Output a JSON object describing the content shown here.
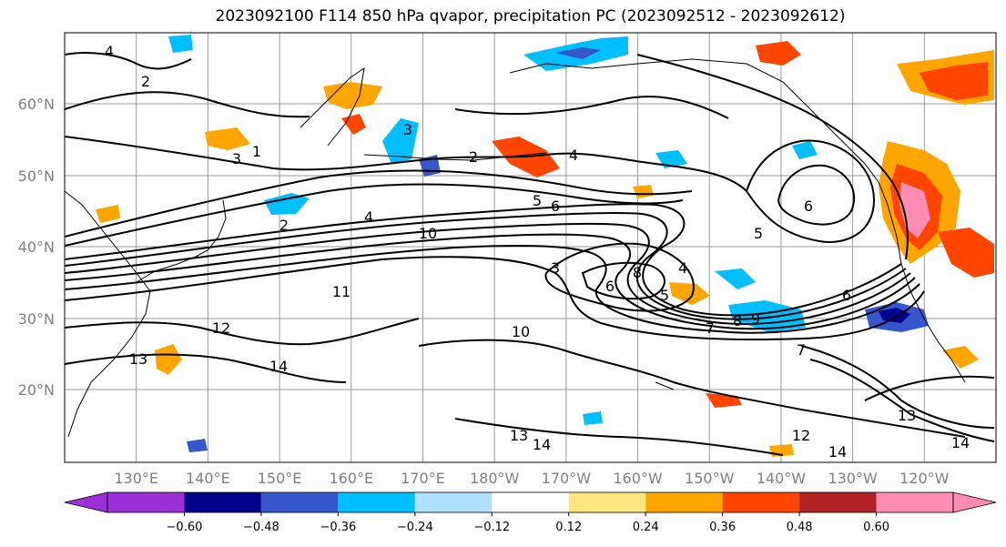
{
  "title": "2023092100 F114 850 hPa qvapor, precipitation PC (2023092512 - 2023092612)",
  "map": {
    "lat_labels": [
      "60°N",
      "50°N",
      "40°N",
      "30°N",
      "20°N"
    ],
    "lon_labels": [
      "130°E",
      "140°E",
      "150°E",
      "160°E",
      "170°E",
      "180°W",
      "170°W",
      "160°W",
      "150°W",
      "140°W",
      "130°W",
      "120°W"
    ],
    "extent": {
      "lon_min": 120,
      "lon_max": 250,
      "lat_min": 10,
      "lat_max": 70
    },
    "gridlines": true,
    "contour_labels": [
      "4",
      "2",
      "3",
      "1",
      "2",
      "4",
      "3",
      "2",
      "4",
      "5",
      "6",
      "10",
      "6",
      "5",
      "11",
      "12",
      "13",
      "14",
      "10",
      "9",
      "8",
      "7",
      "6",
      "5",
      "4",
      "3",
      "6",
      "7",
      "8",
      "13",
      "14",
      "12",
      "13",
      "14",
      "14"
    ]
  },
  "colorbar": {
    "colors": [
      "#9b30d9",
      "#00008b",
      "#3657cb",
      "#00bfff",
      "#b0e2ff",
      "#ffffff",
      "#ffe680",
      "#ffa500",
      "#ff4500",
      "#b22222",
      "#ff8cb4"
    ],
    "tick_labels": [
      "−0.60",
      "−0.48",
      "−0.36",
      "−0.24",
      "−0.12",
      "0.12",
      "0.24",
      "0.36",
      "0.48",
      "0.60"
    ],
    "extend": "both"
  }
}
